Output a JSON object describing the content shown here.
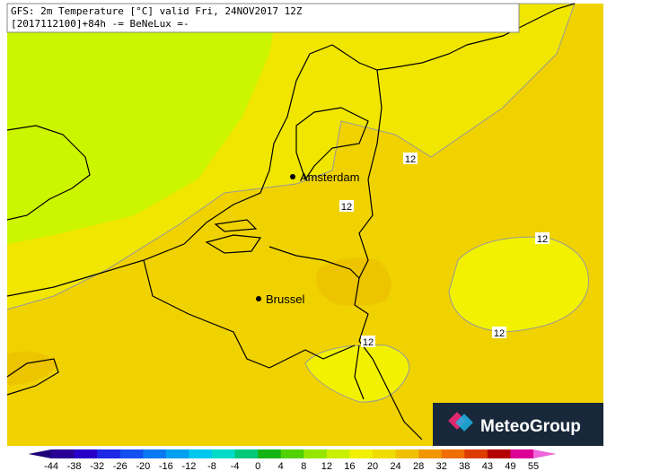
{
  "header": {
    "line1": "GFS: 2m Temperature [°C] valid Fri, 24NOV2017 12Z",
    "line2": "[2017112100]+84h -= BeNeLux =-"
  },
  "cities": [
    {
      "label": "Amsterdam"
    },
    {
      "label": "Brussel"
    }
  ],
  "contour_labels": [
    "12",
    "12",
    "12",
    "12",
    "12"
  ],
  "logo": {
    "text": "MeteoGroup"
  },
  "colorbar": {
    "labels": [
      "-44",
      "-38",
      "-32",
      "-26",
      "-20",
      "-16",
      "-12",
      "-8",
      "-4",
      "0",
      "4",
      "8",
      "12",
      "16",
      "20",
      "24",
      "28",
      "32",
      "38",
      "43",
      "49",
      "55"
    ],
    "colors": [
      "#1e0078",
      "#280096",
      "#2800c8",
      "#1e28e6",
      "#1450f0",
      "#0a78f0",
      "#00a0f0",
      "#00c8f0",
      "#00dcc8",
      "#00c878",
      "#14b414",
      "#50d200",
      "#96e600",
      "#c8f000",
      "#f0f000",
      "#f0dc00",
      "#f0c000",
      "#f09600",
      "#f06e00",
      "#dc3c00",
      "#b40000",
      "#dc0096",
      "#f064dc"
    ]
  }
}
